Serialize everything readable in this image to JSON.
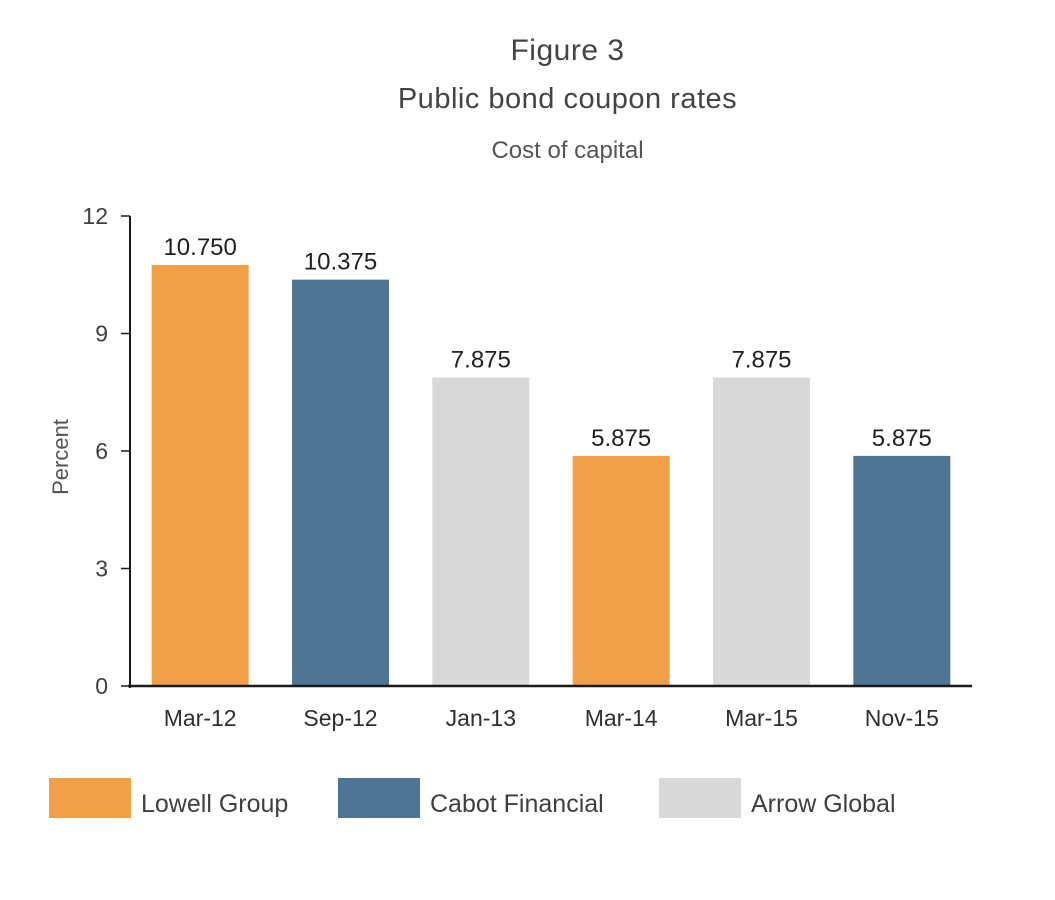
{
  "figure_label": "Figure 3",
  "chart_data": {
    "type": "bar",
    "title": "Public bond coupon rates",
    "subtitle": "Cost of capital",
    "ylabel": "Percent",
    "xlabel": "",
    "ylim": [
      0,
      12
    ],
    "yticks": [
      "0",
      "3",
      "6",
      "9",
      "12"
    ],
    "grid": false,
    "legend_position": "bottom",
    "categories": [
      "Mar-12",
      "Sep-12",
      "Jan-13",
      "Mar-14",
      "Mar-15",
      "Nov-15"
    ],
    "values": [
      10.75,
      10.375,
      7.875,
      5.875,
      7.875,
      5.875
    ],
    "value_labels": [
      "10.750",
      "10.375",
      "7.875",
      "5.875",
      "7.875",
      "5.875"
    ],
    "bar_series": [
      "Lowell Group",
      "Cabot Financial",
      "Arrow Global",
      "Lowell Group",
      "Arrow Global",
      "Cabot Financial"
    ],
    "series": [
      {
        "name": "Lowell Group",
        "color": "#f2a048"
      },
      {
        "name": "Cabot Financial",
        "color": "#4e7593"
      },
      {
        "name": "Arrow Global",
        "color": "#d9d9d9"
      }
    ]
  }
}
